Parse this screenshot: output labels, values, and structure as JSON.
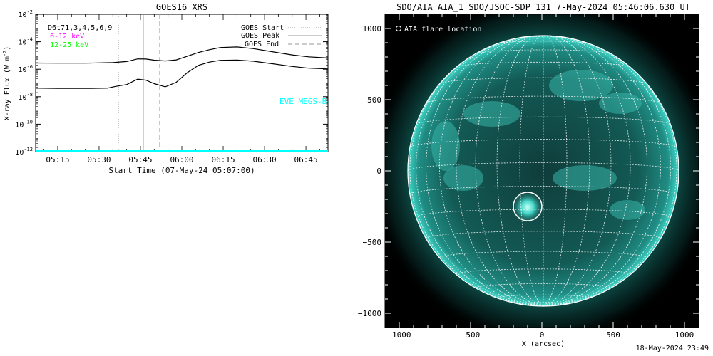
{
  "goes_panel": {
    "title": "GOES16 XRS",
    "ylabel": "X-ray Flux (W m",
    "ylabel_sup": "-2",
    "ylabel_close": ")",
    "xlabel": "Start Time (07-May-24 05:07:00)",
    "detector_label": "D6t71,3,4,5,6,9",
    "channels": [
      {
        "label": "6-12 keV",
        "color": "#ff00ff"
      },
      {
        "label": "12-25 keV",
        "color": "#00ff00"
      }
    ],
    "legend": [
      {
        "label": "GOES Start",
        "style": "dotted",
        "color": "#999999"
      },
      {
        "label": "GOES Peak",
        "style": "solid",
        "color": "#999999"
      },
      {
        "label": "GOES End",
        "style": "dashed",
        "color": "#999999"
      }
    ],
    "eve_label": "EVE MEGS-B",
    "eve_color": "#00ffff"
  },
  "chart_data": [
    {
      "type": "line",
      "title": "GOES16 XRS",
      "xlabel": "Start Time (07-May-24 05:07:00)",
      "ylabel": "X-ray Flux (W m^-2)",
      "yscale": "log",
      "ylim_exponent": [
        -12,
        -2
      ],
      "ytick_exponents": [
        -12,
        -10,
        -8,
        -6,
        -4,
        -2
      ],
      "xlim": [
        "05:07",
        "06:53"
      ],
      "xticks": [
        "05:15",
        "05:30",
        "05:45",
        "06:00",
        "06:15",
        "06:30",
        "06:45"
      ],
      "events": {
        "goes_start": "05:37",
        "goes_peak": "05:46",
        "goes_end": "05:52"
      },
      "series": [
        {
          "color": "#000000",
          "x": [
            "05:07",
            "05:15",
            "05:25",
            "05:35",
            "05:40",
            "05:44",
            "05:47",
            "05:50",
            "05:54",
            "05:58",
            "06:02",
            "06:06",
            "06:10",
            "06:14",
            "06:20",
            "06:26",
            "06:32",
            "06:40",
            "06:46",
            "06:53"
          ],
          "log10_y": [
            -5.55,
            -5.56,
            -5.56,
            -5.52,
            -5.44,
            -5.25,
            -5.26,
            -5.34,
            -5.4,
            -5.32,
            -5.05,
            -4.78,
            -4.58,
            -4.42,
            -4.38,
            -4.5,
            -4.7,
            -4.96,
            -5.1,
            -5.18
          ]
        },
        {
          "color": "#000000",
          "x": [
            "05:07",
            "05:15",
            "05:25",
            "05:33",
            "05:36",
            "05:40",
            "05:44",
            "05:47",
            "05:50",
            "05:54",
            "05:58",
            "06:02",
            "06:06",
            "06:10",
            "06:14",
            "06:20",
            "06:26",
            "06:32",
            "06:40",
            "06:46",
            "06:53"
          ],
          "log10_y": [
            -7.38,
            -7.4,
            -7.4,
            -7.38,
            -7.25,
            -7.12,
            -6.72,
            -6.8,
            -7.05,
            -7.28,
            -6.95,
            -6.25,
            -5.72,
            -5.48,
            -5.35,
            -5.33,
            -5.42,
            -5.58,
            -5.8,
            -5.92,
            -5.98
          ]
        },
        {
          "name": "EVE MEGS-B",
          "color": "#00ffff",
          "x": [
            "05:07",
            "06:53"
          ],
          "log10_y": [
            -11.95,
            -11.95
          ]
        }
      ]
    },
    {
      "type": "image",
      "title": "SDO/AIA AIA_1 SDO/JSOC-SDP 131  7-May-2024 05:46:06.630 UT",
      "xlabel": "X (arcsec)",
      "ylabel": "",
      "xlim": [
        -1100,
        1100
      ],
      "ylim": [
        -1100,
        1100
      ],
      "xticks": [
        -1000,
        -500,
        0,
        500,
        1000
      ],
      "yticks": [
        -1000,
        -500,
        0,
        500,
        1000
      ],
      "legend": "AIA flare location",
      "flare_location_arcsec": {
        "x": -110,
        "y": -250,
        "radius": 100
      },
      "solar_radius_arcsec": 950,
      "grid_spacing_deg": 10,
      "accent_color": "#1fbfb0"
    }
  ],
  "aia_panel": {
    "title": "SDO/AIA AIA_1 SDO/JSOC-SDP 131  7-May-2024 05:46:06.630 UT",
    "xlabel": "X (arcsec)",
    "legend_label": "AIA flare location"
  },
  "footer": {
    "timestamp": "18-May-2024 23:49"
  }
}
